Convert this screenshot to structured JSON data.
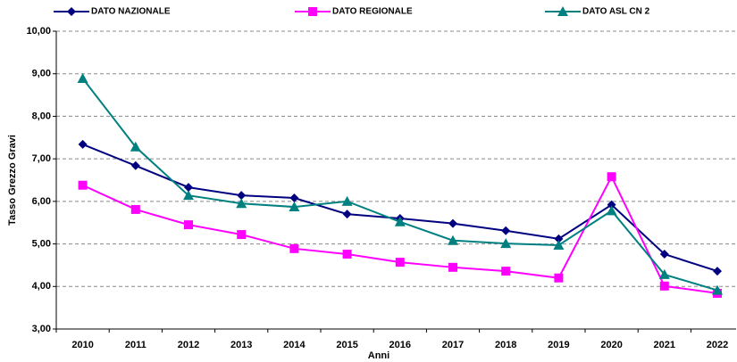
{
  "chart_data": {
    "type": "line",
    "x_label": "Anni",
    "y_label": "Tasso Grezzo Gravi",
    "categories": [
      "2010",
      "2011",
      "2012",
      "2013",
      "2014",
      "2015",
      "2016",
      "2017",
      "2018",
      "2019",
      "2020",
      "2021",
      "2022"
    ],
    "series": [
      {
        "name": "DATO NAZIONALE",
        "color": "#000080",
        "marker": "diamond",
        "values": [
          7.34,
          6.84,
          6.33,
          6.14,
          6.08,
          5.7,
          5.6,
          5.48,
          5.31,
          5.12,
          5.92,
          4.76,
          4.36
        ]
      },
      {
        "name": "DATO REGIONALE",
        "color": "#ff00ff",
        "marker": "square",
        "values": [
          6.38,
          5.81,
          5.45,
          5.22,
          4.89,
          4.76,
          4.57,
          4.45,
          4.36,
          4.2,
          6.58,
          4.01,
          3.84
        ]
      },
      {
        "name": "DATO ASL CN 2",
        "color": "#008080",
        "marker": "triangle",
        "values": [
          8.89,
          7.28,
          6.14,
          5.95,
          5.87,
          6.0,
          5.52,
          5.08,
          5.01,
          4.97,
          5.78,
          4.28,
          3.91
        ]
      }
    ],
    "ylim": [
      3,
      10
    ],
    "yticks": [
      {
        "value": 3,
        "label": "3,00"
      },
      {
        "value": 4,
        "label": "4,00"
      },
      {
        "value": 5,
        "label": "5,00"
      },
      {
        "value": 6,
        "label": "6,00"
      },
      {
        "value": 7,
        "label": "7,00"
      },
      {
        "value": 8,
        "label": "8,00"
      },
      {
        "value": 9,
        "label": "9,00"
      },
      {
        "value": 10,
        "label": "10,00"
      }
    ],
    "grid": true,
    "legend": "top"
  }
}
